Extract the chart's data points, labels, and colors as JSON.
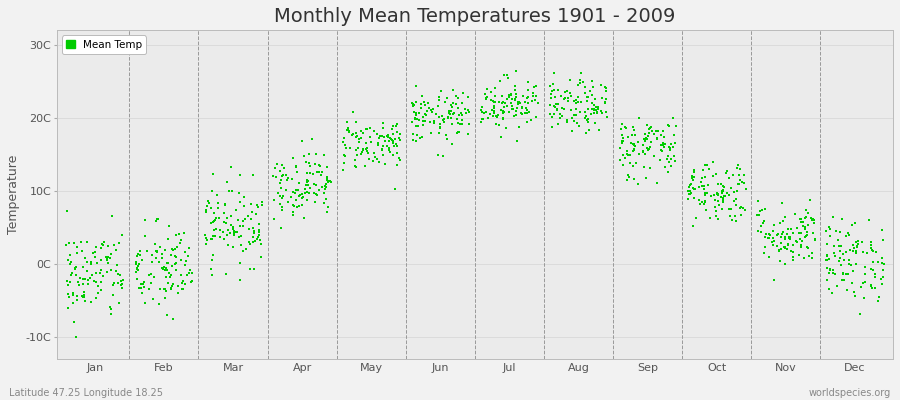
{
  "title": "Monthly Mean Temperatures 1901 - 2009",
  "ylabel": "Temperature",
  "ytick_labels": [
    "-10C",
    "0C",
    "10C",
    "20C",
    "30C"
  ],
  "ytick_values": [
    -10,
    0,
    10,
    20,
    30
  ],
  "ylim": [
    -13,
    32
  ],
  "months": [
    "Jan",
    "Feb",
    "Mar",
    "Apr",
    "May",
    "Jun",
    "Jul",
    "Aug",
    "Sep",
    "Oct",
    "Nov",
    "Dec"
  ],
  "legend_label": "Mean Temp",
  "dot_color": "#00cc00",
  "dot_size": 2.5,
  "background_color": "#f2f2f2",
  "plot_bg_color": "#ebebeb",
  "footer_left": "Latitude 47.25 Longitude 18.25",
  "footer_right": "worldspecies.org",
  "title_fontsize": 14,
  "n_years": 109,
  "seed": 42,
  "monthly_means": [
    -1.5,
    -0.8,
    5.5,
    11.0,
    16.5,
    20.0,
    22.0,
    21.5,
    16.0,
    10.0,
    4.0,
    0.5
  ],
  "monthly_stds": [
    3.2,
    3.2,
    2.8,
    2.3,
    1.8,
    1.8,
    1.8,
    1.8,
    2.2,
    2.2,
    2.2,
    2.8
  ]
}
